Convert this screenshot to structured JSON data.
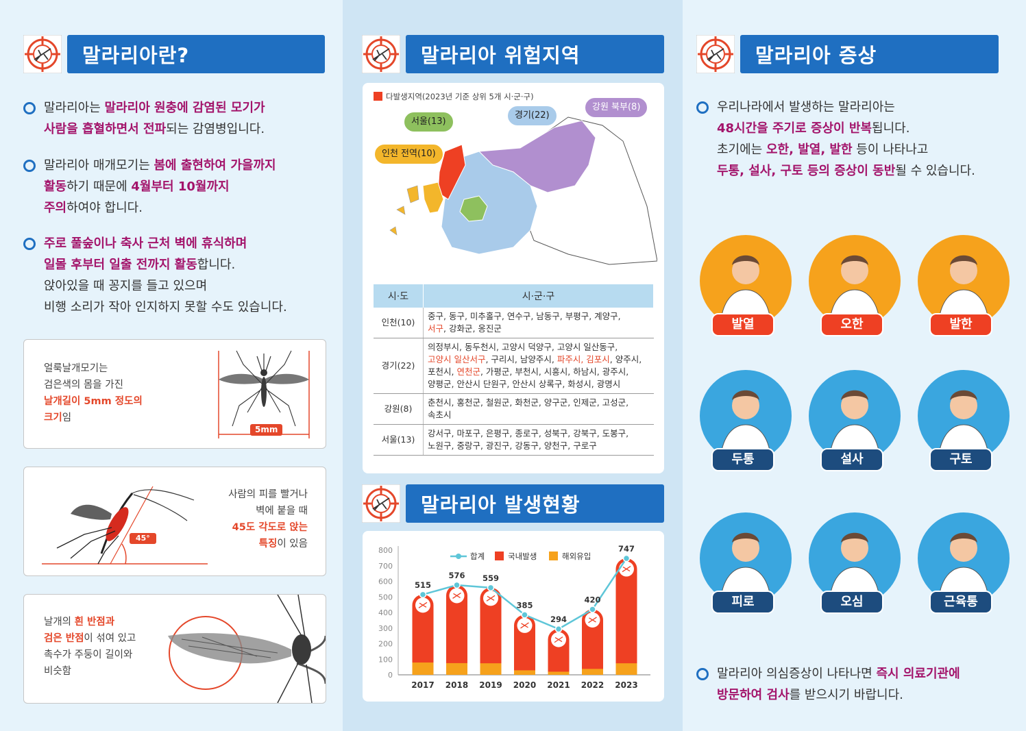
{
  "col1": {
    "title": "말라리아란?",
    "p1": {
      "a": "말라리아는 ",
      "b": "말라리아 원충에 감염된 모기가",
      "c": "사람을 흡혈하면서 전파",
      "d": "되는 감염병입니다."
    },
    "p2": {
      "a": "말라리아 매개모기는 ",
      "b": "봄에 출현하여 가을까지",
      "c": "활동",
      "d": "하기 때문에 ",
      "e": "4월부터 10월까지",
      "f": "주의",
      "g": "하여야 합니다."
    },
    "p3": {
      "a": "주로 풀숲이나 축사 근처 벽에 휴식하며",
      "b": "일몰 후부터 일출 전까지 활동",
      "c": "합니다.",
      "d": "앉아있을 때 꽁지를 들고 있으며",
      "e": "비행 소리가 작아 인지하지 못할 수도 있습니다."
    },
    "card1": {
      "l1": "얼룩날개모기는",
      "l2": "검은색의 몸을 가진",
      "l3": "날개길이 5mm 정도의",
      "l4": "크기",
      "l5": "임",
      "measure": "5mm"
    },
    "card2": {
      "l1": "사람의 피를 빨거나",
      "l2": "벽에 붙을 때",
      "l3": "45도 각도로 앉는",
      "l4": "특징",
      "l5": "이 있음",
      "angle": "45°"
    },
    "card3": {
      "l1a": "날개의 ",
      "l1b": "흰 반점과",
      "l2a": "검은 반점",
      "l2b": "이 섞여 있고",
      "l3": "촉수가 주둥이 길이와",
      "l4": "비슷함"
    }
  },
  "col2": {
    "title_map": "말라리아 위험지역",
    "legend": "다발생지역(2023년 기준 상위 5개 시·군·구)",
    "tags": {
      "seoul": "서울(13)",
      "gyeonggi": "경기(22)",
      "gangwon": "강원 북부(8)",
      "incheon": "인천 전역(10)"
    },
    "table": {
      "h1": "시·도",
      "h2": "시·군·구",
      "rows": [
        {
          "sido": "인천(10)",
          "l1": "중구, 동구, 미추홀구, 연수구, 남동구, 부평구, 계양구,",
          "l2r": "서구",
          "l2": ", 강화군, 옹진군"
        },
        {
          "sido": "경기(22)",
          "l1": "의정부시, 동두천시, 고양시 덕양구, 고양시 일산동구,",
          "l2r": "고양시 일산서구",
          "l2a": ", 구리시, 남양주시, ",
          "l2r2": "파주시, 김포시",
          "l2b": ", 양주시,",
          "l3a": "포천시, ",
          "l3r": "연천군",
          "l3b": ", 가평군, 부천시, 시흥시, 하남시, 광주시,",
          "l4": "양평군, 안산시 단원구, 안산시 상록구, 화성시, 광명시"
        },
        {
          "sido": "강원(8)",
          "l1": "춘천시, 홍천군, 철원군, 화천군, 양구군, 인제군, 고성군,",
          "l2": "속초시"
        },
        {
          "sido": "서울(13)",
          "l1": "강서구, 마포구, 은평구, 종로구, 성북구, 강북구, 도봉구,",
          "l2": "노원구, 중랑구, 광진구, 강동구, 양천구, 구로구"
        }
      ]
    },
    "title_chart": "말라리아 발생현황"
  },
  "chart_data": {
    "type": "bar",
    "categories": [
      "2017",
      "2018",
      "2019",
      "2020",
      "2021",
      "2022",
      "2023"
    ],
    "series": [
      {
        "name": "합계",
        "type": "line",
        "values": [
          515,
          576,
          559,
          385,
          294,
          420,
          747
        ]
      },
      {
        "name": "국내발생",
        "values": [
          436,
          501,
          485,
          356,
          274,
          382,
          673
        ]
      },
      {
        "name": "해외유입",
        "values": [
          79,
          75,
          74,
          29,
          20,
          38,
          74
        ]
      }
    ],
    "ylim": [
      0,
      800
    ],
    "yticks": [
      0,
      100,
      200,
      300,
      400,
      500,
      600,
      700,
      800
    ],
    "colors": {
      "total": "#5ec6d8",
      "domestic": "#ee4023",
      "overseas": "#f6a21c"
    }
  },
  "col3": {
    "title": "말라리아 증상",
    "p1": {
      "a": "우리나라에서 발생하는 말라리아는",
      "b": "48시간을 주기로 증상이 반복",
      "c": "됩니다.",
      "d": "초기에는 ",
      "e": "오한, 발열, 발한",
      "f": " 등이 나타나고",
      "g": "두통, 설사, 구토 등의 증상이 동반",
      "h": "될 수 있습니다."
    },
    "symptoms": [
      "발열",
      "오한",
      "발한",
      "두통",
      "설사",
      "구토",
      "피로",
      "오심",
      "근육통"
    ],
    "p2": {
      "a": "말라리아 의심증상이 나타나면 ",
      "b": "즉시 의료기관에",
      "c": "방문하여 검사",
      "d": "를 받으시기 바랍니다."
    }
  }
}
